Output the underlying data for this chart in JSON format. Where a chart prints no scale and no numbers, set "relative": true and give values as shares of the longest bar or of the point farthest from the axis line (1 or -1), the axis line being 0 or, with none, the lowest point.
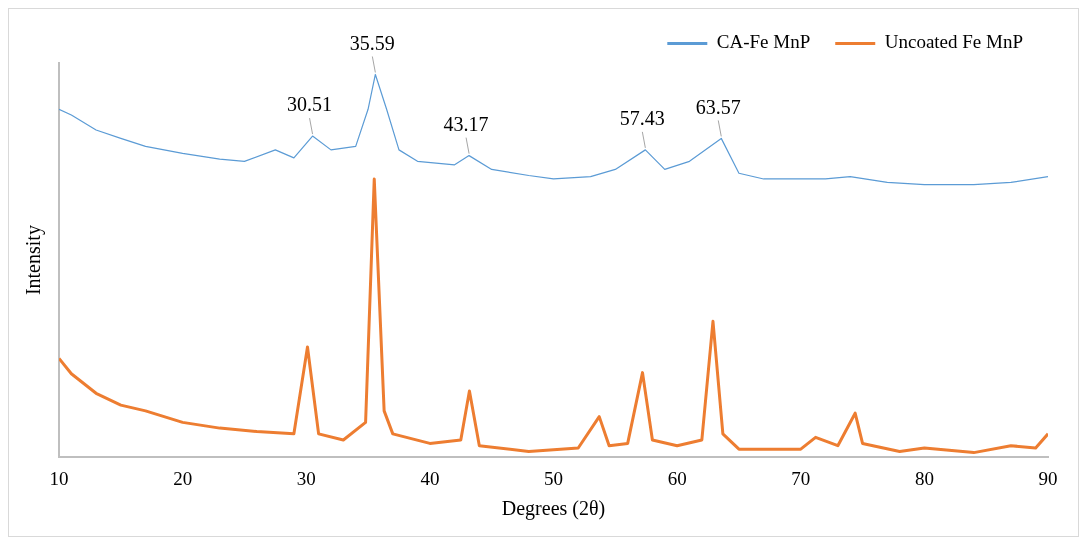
{
  "chart_data": {
    "type": "line",
    "xlabel": "Degrees (2θ)",
    "ylabel": "Intensity",
    "relative": true,
    "xlim": [
      10,
      90
    ],
    "xticks": [
      10,
      20,
      30,
      40,
      50,
      60,
      70,
      80,
      90
    ],
    "grid": false,
    "legend": "top right",
    "marker": "none",
    "line_style": "solid",
    "annotations": [
      {
        "text": "30.51",
        "x": 30.51,
        "y": 0.839
      },
      {
        "text": "35.59",
        "x": 35.59,
        "y": 1
      },
      {
        "text": "43.17",
        "x": 43.17,
        "y": 0.788
      },
      {
        "text": "57.43",
        "x": 57.43,
        "y": 0.803
      },
      {
        "text": "63.57",
        "x": 63.57,
        "y": 0.833
      }
    ],
    "series": [
      {
        "name": "CA-Fe MnP",
        "color": "#5b9bd5",
        "x": [
          10,
          11,
          13,
          15,
          17,
          20,
          23,
          25,
          27.5,
          29,
          30.51,
          32,
          34,
          35,
          35.59,
          36.5,
          37.5,
          39,
          42,
          43.17,
          45,
          48,
          50,
          53,
          55,
          57.43,
          59,
          61,
          63.57,
          65,
          67,
          70,
          72,
          74,
          77,
          80,
          84,
          87,
          90
        ],
        "values": [
          0.909,
          0.894,
          0.855,
          0.833,
          0.812,
          0.794,
          0.779,
          0.773,
          0.803,
          0.782,
          0.839,
          0.803,
          0.812,
          0.909,
          1,
          0.909,
          0.803,
          0.773,
          0.764,
          0.788,
          0.752,
          0.736,
          0.727,
          0.733,
          0.752,
          0.803,
          0.752,
          0.773,
          0.833,
          0.742,
          0.727,
          0.727,
          0.727,
          0.733,
          0.718,
          0.712,
          0.712,
          0.718,
          0.733
        ]
      },
      {
        "name": "Uncoated Fe MnP",
        "color": "#ed7d31",
        "x": [
          10,
          11,
          13,
          15,
          17,
          20,
          23,
          26,
          29,
          30.1,
          31,
          33,
          34.8,
          35.5,
          36.3,
          37,
          40,
          42.5,
          43.2,
          44,
          48,
          52,
          53.7,
          54.5,
          56,
          57.2,
          58,
          60,
          62,
          62.9,
          63.7,
          65,
          70,
          71.2,
          73,
          74.4,
          75,
          78,
          80,
          84,
          87,
          89,
          90
        ],
        "values": [
          0.258,
          0.218,
          0.167,
          0.136,
          0.121,
          0.091,
          0.076,
          0.067,
          0.061,
          0.288,
          0.061,
          0.045,
          0.091,
          0.727,
          0.121,
          0.061,
          0.036,
          0.045,
          0.173,
          0.03,
          0.015,
          0.024,
          0.106,
          0.03,
          0.036,
          0.221,
          0.045,
          0.03,
          0.045,
          0.355,
          0.061,
          0.021,
          0.021,
          0.052,
          0.03,
          0.115,
          0.036,
          0.015,
          0.024,
          0.012,
          0.03,
          0.024,
          0.061
        ]
      }
    ]
  }
}
